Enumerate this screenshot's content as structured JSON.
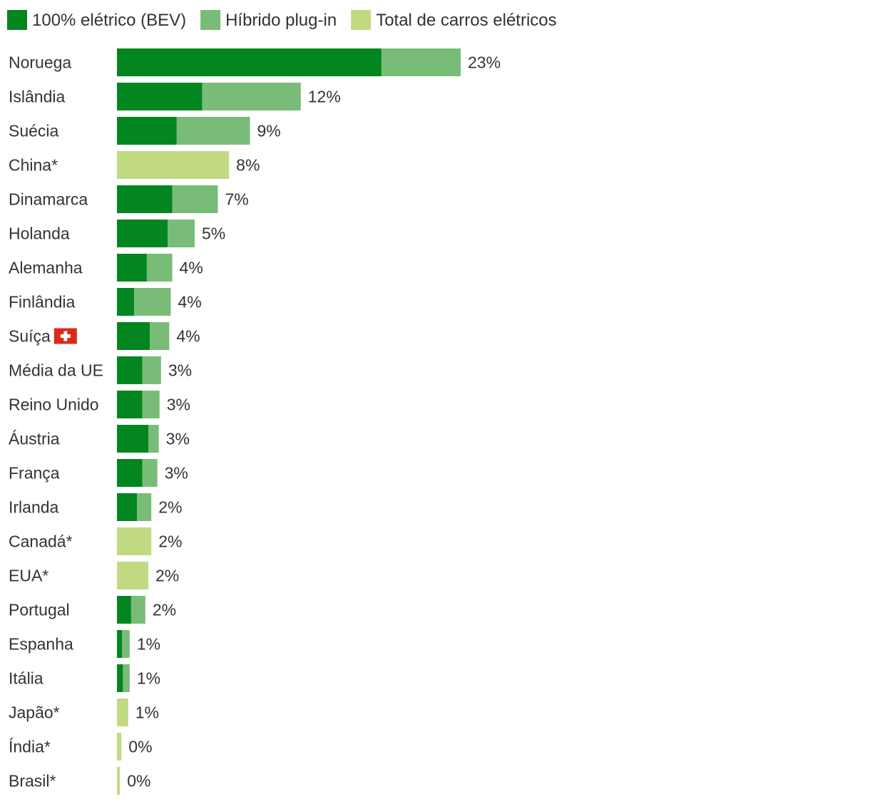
{
  "chart_data": {
    "type": "bar",
    "orientation": "horizontal",
    "stacked": true,
    "legend_position": "top-left",
    "grid": false,
    "series": [
      {
        "name": "100% elétrico (BEV)",
        "color": "#038520"
      },
      {
        "name": "Híbrido plug-in",
        "color": "#79bc78"
      },
      {
        "name": "Total de carros elétricos",
        "color": "#c1da82"
      }
    ],
    "categories": [
      "Noruega",
      "Islândia",
      "Suécia",
      "China*",
      "Dinamarca",
      "Holanda",
      "Alemanha",
      "Finlândia",
      "Suíça",
      "Média da UE",
      "Reino Unido",
      "Áustria",
      "França",
      "Irlanda",
      "Canadá*",
      "EUA*",
      "Portugal",
      "Espanha",
      "Itália",
      "Japão*",
      "Índia*",
      "Brasil*"
    ],
    "bev": [
      17.7,
      5.7,
      4.0,
      null,
      3.7,
      3.4,
      2.0,
      1.15,
      2.2,
      1.7,
      1.7,
      2.1,
      1.7,
      1.35,
      null,
      null,
      0.95,
      0.35,
      0.4,
      null,
      null,
      null
    ],
    "phev": [
      5.3,
      6.6,
      4.9,
      null,
      3.05,
      1.8,
      1.7,
      2.45,
      1.3,
      1.25,
      1.15,
      0.7,
      1.0,
      0.95,
      null,
      null,
      0.95,
      0.5,
      0.45,
      null,
      null,
      null
    ],
    "total": [
      null,
      null,
      null,
      7.5,
      null,
      null,
      null,
      null,
      null,
      null,
      null,
      null,
      null,
      null,
      2.3,
      2.1,
      null,
      null,
      null,
      0.75,
      0.3,
      0.2
    ],
    "value_labels": [
      "23%",
      "12%",
      "9%",
      "8%",
      "7%",
      "5%",
      "4%",
      "4%",
      "4%",
      "3%",
      "3%",
      "3%",
      "3%",
      "2%",
      "2%",
      "2%",
      "2%",
      "1%",
      "1%",
      "1%",
      "0%",
      "0%"
    ],
    "flag_category": "Suíça",
    "xlim": [
      0,
      23
    ]
  }
}
